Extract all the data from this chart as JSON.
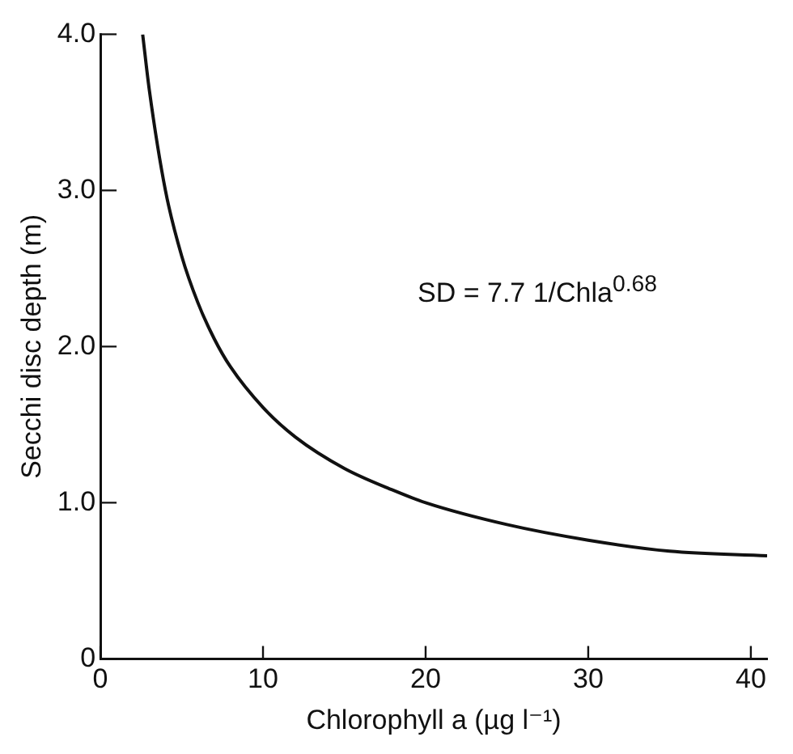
{
  "chart_data": {
    "type": "line",
    "xlabel": "Chlorophyll a (µg l⁻¹)",
    "ylabel": "Secchi disc depth (m)",
    "annotations": [
      "SD = 7.7 1/Chla$^{0.68}$"
    ],
    "x": [
      2.6,
      3,
      4,
      5,
      6,
      7,
      8,
      10,
      12,
      15,
      18,
      20,
      25,
      30,
      35,
      41
    ],
    "series": [
      {
        "color": "#111111",
        "values": [
          4.0,
          3.65,
          3.0,
          2.58,
          2.28,
          2.05,
          1.87,
          1.61,
          1.42,
          1.22,
          1.08,
          1.0,
          0.86,
          0.76,
          0.69,
          0.66
        ]
      }
    ],
    "xlim": [
      0,
      41
    ],
    "ylim": [
      0,
      4.0
    ],
    "xticks": [
      0,
      10,
      20,
      30,
      40
    ],
    "yticks": [
      0,
      {
        "value": 1,
        "label": "1.0"
      },
      {
        "value": 2,
        "label": "2.0"
      },
      {
        "value": 3,
        "label": "3.0"
      },
      {
        "value": 4,
        "label": "4.0"
      }
    ],
    "grid": false,
    "legend": false,
    "marker": "none",
    "line_style": "solid"
  }
}
